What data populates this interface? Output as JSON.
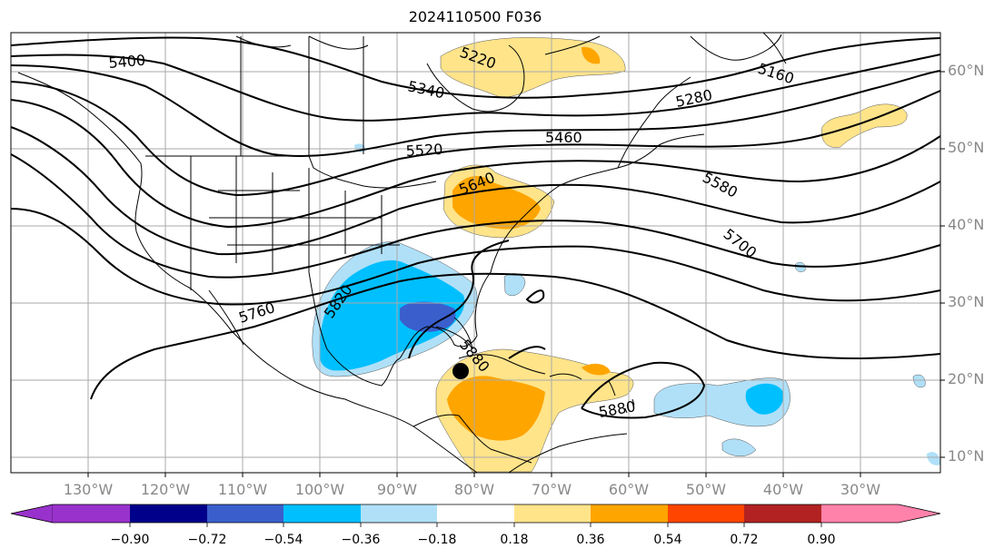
{
  "title": "2024110500 F036",
  "lat_labels": [
    "60°N",
    "50°N",
    "40°N",
    "30°N",
    "20°N",
    "10°N"
  ],
  "lon_labels": [
    "130°W",
    "120°W",
    "110°W",
    "100°W",
    "90°W",
    "80°W",
    "70°W",
    "60°W",
    "50°W",
    "40°W",
    "30°W"
  ],
  "contour_labels": [
    "5400",
    "5340",
    "5220",
    "5160",
    "5280",
    "5460",
    "5520",
    "5640",
    "5580",
    "5700",
    "5760",
    "5820",
    "5880",
    "5880"
  ],
  "colorbar": {
    "ticks": [
      "−0.90",
      "−0.72",
      "−0.54",
      "−0.36",
      "−0.18",
      "0.18",
      "0.36",
      "0.54",
      "0.72",
      "0.90"
    ],
    "colors": [
      "#9932cc",
      "#00008b",
      "#3a5fcd",
      "#00bfff",
      "#b0e0f8",
      "#ffffff",
      "#ffe48a",
      "#ffa500",
      "#ff4500",
      "#b22222",
      "#ff82ab"
    ]
  },
  "colors": {
    "gridline": "#aaaaaa",
    "coast": "#000000",
    "contour": "#000000"
  },
  "marker": {
    "lat": 21.0,
    "lon": -82.5
  }
}
